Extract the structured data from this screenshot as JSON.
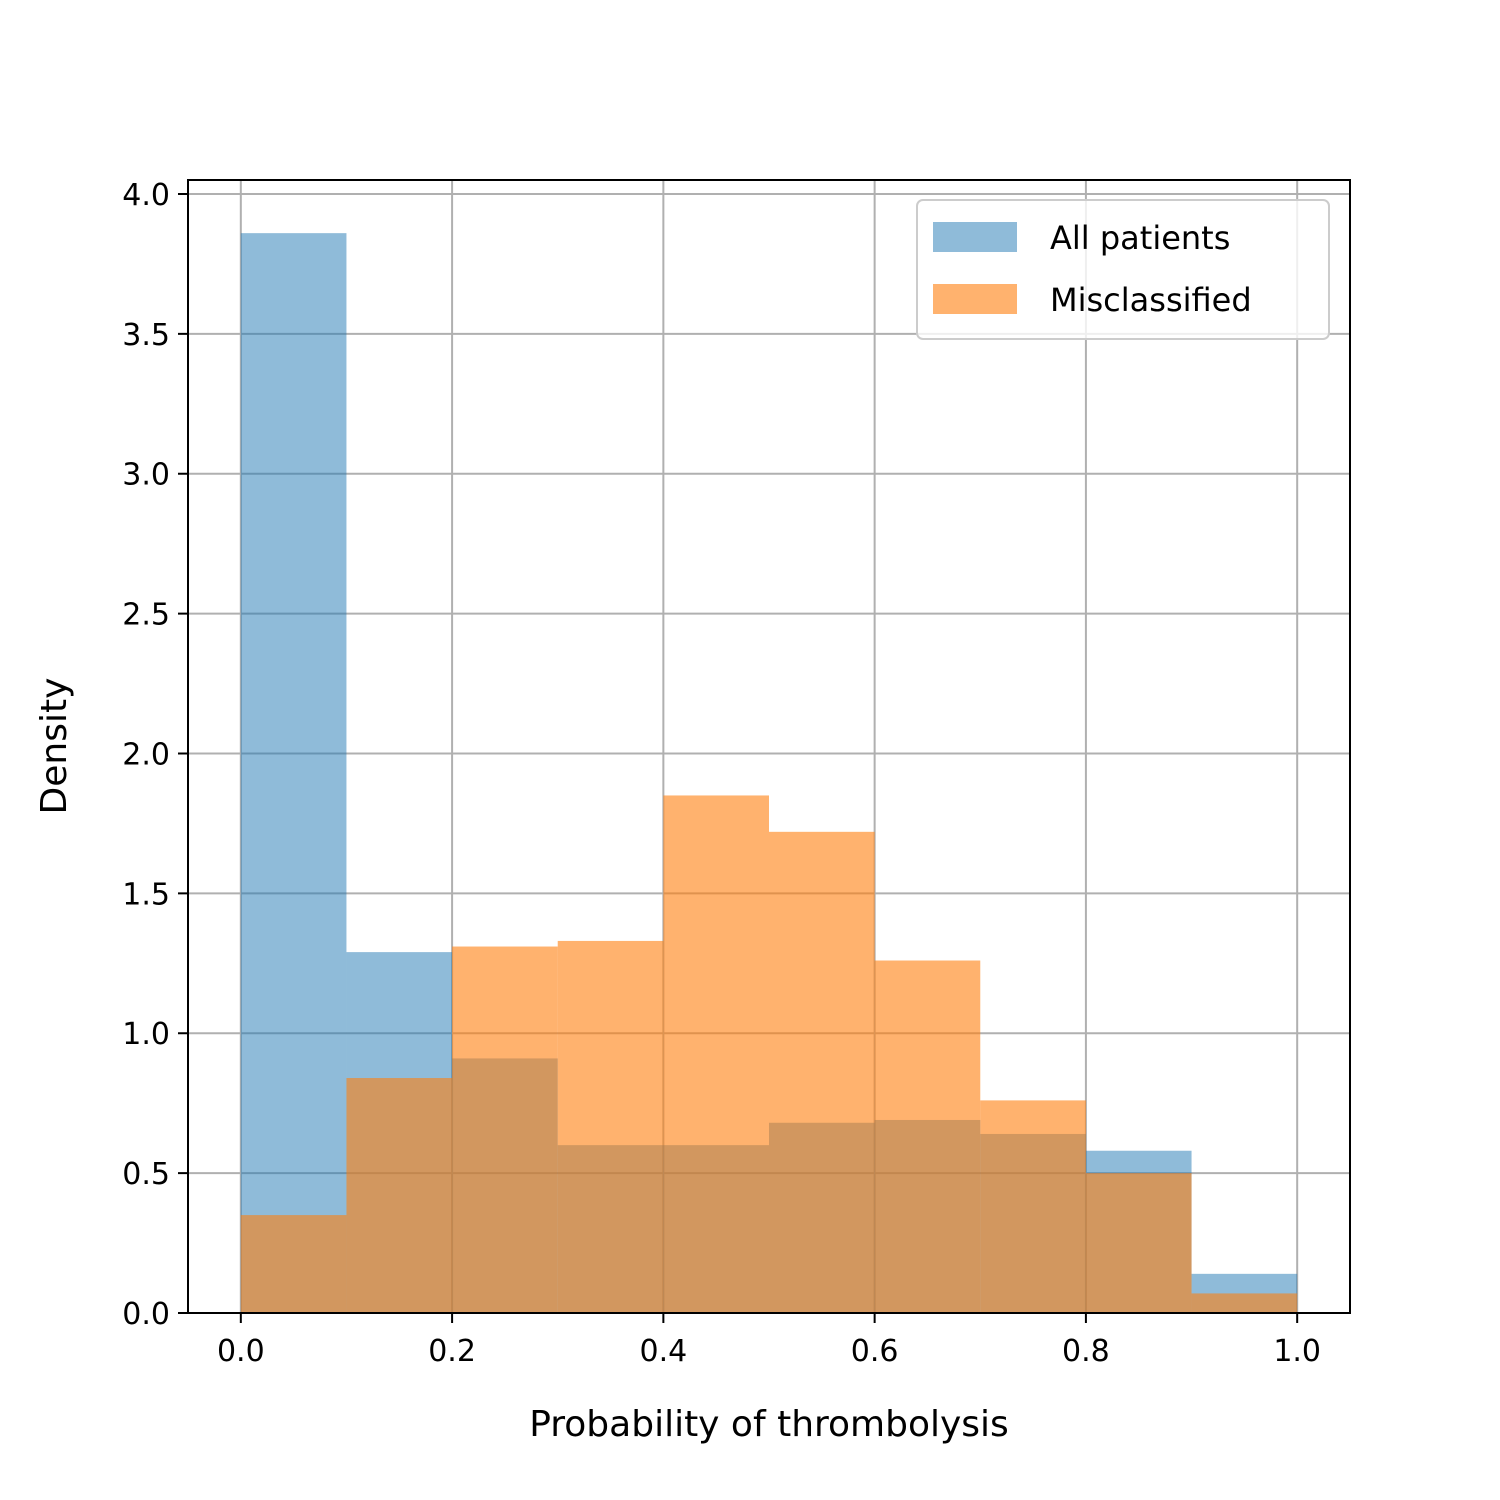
{
  "chart_data": {
    "type": "bar",
    "title": "",
    "xlabel": "Probability of thrombolysis",
    "ylabel": "Density",
    "xlim": [
      -0.05,
      1.05
    ],
    "ylim": [
      0.0,
      4.05
    ],
    "grid": true,
    "legend_position": "top-right",
    "x_ticks": [
      "0.0",
      "0.2",
      "0.4",
      "0.6",
      "0.8",
      "1.0"
    ],
    "y_ticks": [
      "0.0",
      "0.5",
      "1.0",
      "1.5",
      "2.0",
      "2.5",
      "3.0",
      "3.5",
      "4.0"
    ],
    "bin_edges": [
      0.0,
      0.1,
      0.2,
      0.3,
      0.4,
      0.5,
      0.6,
      0.7,
      0.8,
      0.9,
      1.0
    ],
    "series": [
      {
        "name": "All patients",
        "color": "#1f77b4",
        "opacity": 0.5,
        "values": [
          3.86,
          1.29,
          0.91,
          0.6,
          0.6,
          0.68,
          0.69,
          0.64,
          0.58,
          0.14
        ]
      },
      {
        "name": "Misclassified",
        "color": "#ff7f0e",
        "opacity": 0.6,
        "values": [
          0.35,
          0.84,
          1.31,
          1.33,
          1.85,
          1.72,
          1.26,
          0.76,
          0.5,
          0.07
        ]
      }
    ]
  }
}
